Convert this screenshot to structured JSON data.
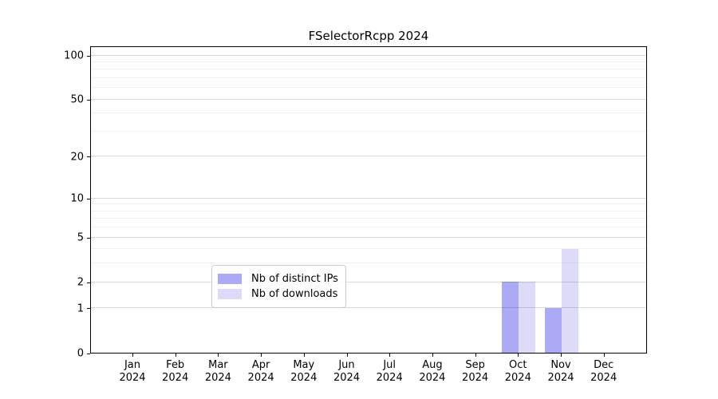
{
  "title": "FSelectorRcpp 2024",
  "chart_data": {
    "type": "bar",
    "title": "FSelectorRcpp 2024",
    "xlabel": "",
    "ylabel": "",
    "yscale": "log1p",
    "grid": "horizontal",
    "legend_position": "lower center",
    "categories": [
      "Jan 2024",
      "Feb 2024",
      "Mar 2024",
      "Apr 2024",
      "May 2024",
      "Jun 2024",
      "Jul 2024",
      "Aug 2024",
      "Sep 2024",
      "Oct 2024",
      "Nov 2024",
      "Dec 2024"
    ],
    "series": [
      {
        "name": "Nb of distinct IPs",
        "color": "#aaaaf5",
        "values": [
          0,
          0,
          0,
          0,
          0,
          0,
          0,
          0,
          0,
          2,
          1,
          0
        ]
      },
      {
        "name": "Nb of downloads",
        "color": "#dcdcf8",
        "values": [
          0,
          0,
          0,
          0,
          0,
          0,
          0,
          0,
          0,
          2,
          4,
          0
        ]
      }
    ],
    "y_major_ticks": [
      0,
      1,
      2,
      5,
      10,
      20,
      50,
      100
    ],
    "y_minor_gridlines": [
      3,
      4,
      6,
      7,
      8,
      9,
      30,
      40,
      60,
      70,
      80,
      90
    ],
    "ylim": [
      0,
      116
    ],
    "colors": {
      "major_grid": "#d9d9d9",
      "minor_grid": "#f0f0f0",
      "axis_frame": "#000000",
      "background": "#ffffff"
    }
  }
}
